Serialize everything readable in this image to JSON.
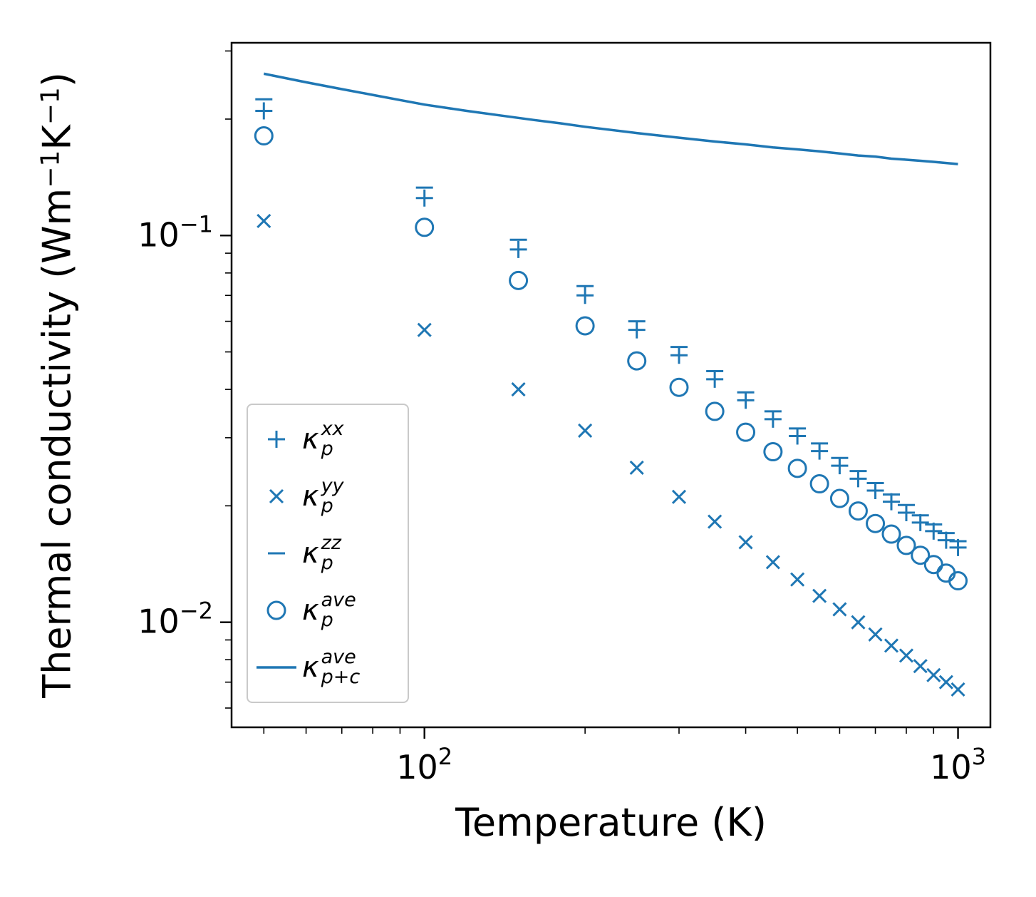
{
  "chart_data": {
    "type": "scatter",
    "x_label": "Temperature (K)",
    "y_label_parts": {
      "p1": "Thermal conductivity (Wm",
      "s1": "−1",
      "p2": "K",
      "s2": "−1",
      "p3": ")"
    },
    "x_scale": "log",
    "y_scale": "log",
    "xlim": [
      43.5,
      1150
    ],
    "ylim": [
      0.00535,
      0.315
    ],
    "x_ticks": [
      {
        "value": 100,
        "base": "10",
        "exp": "2"
      },
      {
        "value": 1000,
        "base": "10",
        "exp": "3"
      }
    ],
    "y_ticks": [
      {
        "value": 0.1,
        "base": "10",
        "exp": "−1"
      },
      {
        "value": 0.01,
        "base": "10",
        "exp": "−2"
      }
    ],
    "color": "#1f77b4",
    "axis_color": "#000000",
    "legend": {
      "position": "lower left"
    },
    "temperatures": [
      50,
      100,
      150,
      200,
      250,
      300,
      350,
      400,
      450,
      500,
      550,
      600,
      650,
      700,
      750,
      800,
      850,
      900,
      950,
      1000
    ],
    "series": [
      {
        "id": "kp_xx",
        "marker": "plus",
        "label": {
          "symbol": "κ",
          "sub": "p",
          "sup": "xx"
        },
        "values": [
          0.21,
          0.125,
          0.092,
          0.07,
          0.057,
          0.049,
          0.0425,
          0.0375,
          0.0335,
          0.0303,
          0.0277,
          0.0254,
          0.0235,
          0.0219,
          0.0205,
          0.0192,
          0.0181,
          0.0172,
          0.0163,
          0.0156
        ]
      },
      {
        "id": "kp_yy",
        "marker": "x",
        "label": {
          "symbol": "κ",
          "sub": "p",
          "sup": "yy"
        },
        "values": [
          0.109,
          0.057,
          0.04,
          0.0313,
          0.0251,
          0.0211,
          0.0182,
          0.0161,
          0.0143,
          0.0129,
          0.0117,
          0.0108,
          0.01,
          0.0093,
          0.0087,
          0.0082,
          0.0077,
          0.0073,
          0.007,
          0.0067
        ]
      },
      {
        "id": "kp_zz",
        "marker": "minus",
        "label": {
          "symbol": "κ",
          "sub": "p",
          "sup": "zz"
        },
        "values": [
          0.225,
          0.133,
          0.0975,
          0.074,
          0.06,
          0.0515,
          0.0446,
          0.0393,
          0.0351,
          0.0317,
          0.029,
          0.0266,
          0.0246,
          0.0229,
          0.0214,
          0.0201,
          0.0189,
          0.0179,
          0.017,
          0.0162
        ]
      },
      {
        "id": "kp_ave",
        "marker": "circle",
        "label": {
          "symbol": "κ",
          "sub": "p",
          "sup": "ave"
        },
        "values": [
          0.181,
          0.105,
          0.0765,
          0.0584,
          0.0474,
          0.0405,
          0.0351,
          0.031,
          0.0276,
          0.025,
          0.0228,
          0.0209,
          0.0194,
          0.018,
          0.0169,
          0.0158,
          0.0149,
          0.0141,
          0.0134,
          0.0128
        ]
      },
      {
        "id": "kpc_ave",
        "marker": "line",
        "label": {
          "symbol": "κ",
          "sub": "p+c",
          "sup": "ave"
        },
        "x": [
          50,
          60,
          70,
          80,
          90,
          100,
          120,
          140,
          160,
          180,
          200,
          250,
          300,
          350,
          400,
          450,
          500,
          550,
          600,
          650,
          700,
          750,
          800,
          850,
          900,
          950,
          1000
        ],
        "values": [
          0.262,
          0.249,
          0.239,
          0.231,
          0.224,
          0.218,
          0.21,
          0.204,
          0.199,
          0.195,
          0.191,
          0.184,
          0.179,
          0.175,
          0.172,
          0.169,
          0.167,
          0.165,
          0.163,
          0.161,
          0.16,
          0.158,
          0.157,
          0.156,
          0.155,
          0.154,
          0.153
        ]
      }
    ]
  }
}
